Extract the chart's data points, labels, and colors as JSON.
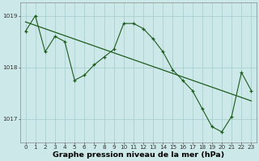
{
  "x": [
    0,
    1,
    2,
    3,
    4,
    5,
    6,
    7,
    8,
    9,
    10,
    11,
    12,
    13,
    14,
    15,
    16,
    17,
    18,
    19,
    20,
    21,
    22,
    23
  ],
  "main_line": [
    1018.7,
    1019.0,
    1018.3,
    1018.6,
    1018.5,
    1017.75,
    1017.85,
    1018.05,
    1018.2,
    1018.35,
    1018.85,
    1018.85,
    1018.75,
    1018.55,
    1018.3,
    1017.95,
    1017.75,
    1017.55,
    1017.2,
    1016.85,
    1016.75,
    1017.05,
    1017.9,
    1017.55
  ],
  "trend_line_x": [
    0,
    23
  ],
  "trend_line_y": [
    1018.88,
    1017.35
  ],
  "background_color": "#cce8e8",
  "grid_color": "#aacfcf",
  "line_color": "#1e5c1e",
  "xlabel": "Graphe pression niveau de la mer (hPa)",
  "ylim_min": 1016.55,
  "ylim_max": 1019.25,
  "yticks": [
    1017,
    1018,
    1019
  ],
  "xticks": [
    0,
    1,
    2,
    3,
    4,
    5,
    6,
    7,
    8,
    9,
    10,
    11,
    12,
    13,
    14,
    15,
    16,
    17,
    18,
    19,
    20,
    21,
    22,
    23
  ],
  "tick_fontsize": 5.2,
  "xlabel_fontsize": 6.8,
  "figwidth": 3.2,
  "figheight": 2.0,
  "dpi": 100
}
